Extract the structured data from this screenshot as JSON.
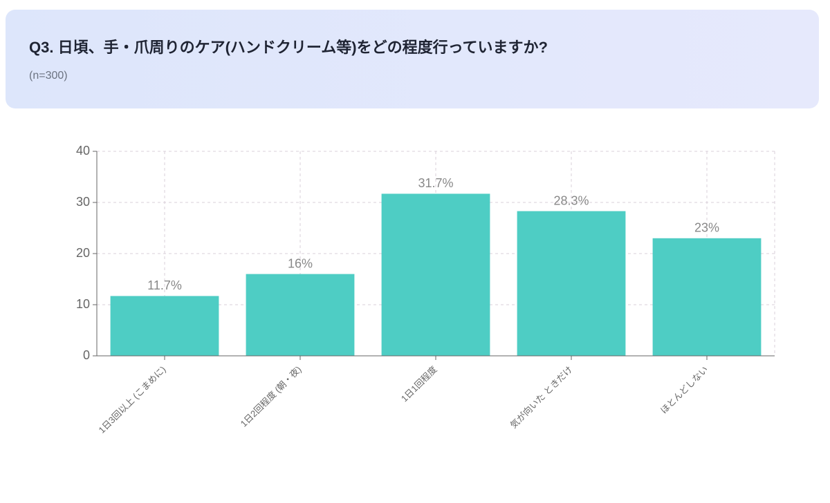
{
  "chart_data": {
    "type": "bar",
    "title": "Q3. 日頃、手・爪周りのケア(ハンドクリーム等)をどの程度行っていますか?",
    "subtitle": "(n=300)",
    "categories": [
      "1日3回以上 (こまめに)",
      "1日2回程度 (朝・夜)",
      "1日1回程度",
      "気が向いた ときだけ",
      "ほとんどしない"
    ],
    "values": [
      11.7,
      16,
      31.7,
      28.3,
      23
    ],
    "value_labels": [
      "11.7%",
      "16%",
      "31.7%",
      "28.3%",
      "23%"
    ],
    "color": "#4ecdc4",
    "ylim": [
      0,
      40
    ],
    "yticks": [
      0,
      10,
      20,
      30,
      40
    ],
    "grid": true
  }
}
